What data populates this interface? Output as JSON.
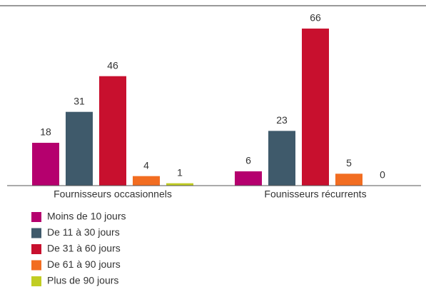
{
  "chart_data": {
    "type": "bar",
    "categories": [
      "Fournisseurs occasionnels",
      "Founisseurs récurrents"
    ],
    "series": [
      {
        "name": "Moins de 10 jours",
        "color": "#b5006e",
        "values": [
          18,
          6
        ]
      },
      {
        "name": "De 11 à 30 jours",
        "color": "#3f5a6b",
        "values": [
          31,
          23
        ]
      },
      {
        "name": "De 31 à 60 jours",
        "color": "#c8102e",
        "values": [
          46,
          66
        ]
      },
      {
        "name": "De 61 à 90 jours",
        "color": "#f26d21",
        "values": [
          4,
          5
        ]
      },
      {
        "name": "Plus de 90 jours",
        "color": "#c1cd23",
        "values": [
          1,
          0
        ]
      }
    ],
    "ylim": [
      0,
      70
    ]
  }
}
